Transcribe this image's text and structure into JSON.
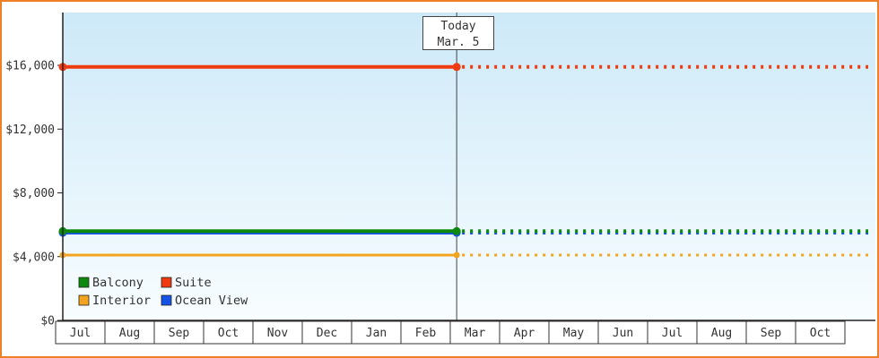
{
  "chart_data": {
    "type": "line",
    "title": "",
    "y_axis": {
      "ticks": [
        {
          "value": 0,
          "label": "$0"
        },
        {
          "value": 4000,
          "label": "$4,000"
        },
        {
          "value": 8000,
          "label": "$8,000"
        },
        {
          "value": 12000,
          "label": "$12,000"
        },
        {
          "value": 16000,
          "label": "$16,000"
        }
      ],
      "range_top_value": 19300
    },
    "x_axis": {
      "months": [
        "Jul",
        "Aug",
        "Sep",
        "Oct",
        "Nov",
        "Dec",
        "Jan",
        "Feb",
        "Mar",
        "Apr",
        "May",
        "Jun",
        "Jul",
        "Aug",
        "Sep",
        "Oct"
      ]
    },
    "today": {
      "label": "Today",
      "date": "Mar. 5",
      "month_index": 8,
      "day_fraction": 0.13
    },
    "series": [
      {
        "name": "Ocean View",
        "color": "#1553e8",
        "value": 5500,
        "stroke_width": 4
      },
      {
        "name": "Balcony",
        "color": "#0d8a0d",
        "value": 5600,
        "stroke_width": 4
      },
      {
        "name": "Interior",
        "color": "#f2a41f",
        "value": 4100,
        "stroke_width": 3
      },
      {
        "name": "Suite",
        "color": "#f03a10",
        "value": 15900,
        "stroke_width": 4
      }
    ],
    "legend": [
      "Balcony",
      "Suite",
      "Interior",
      "Ocean View"
    ],
    "grid": false,
    "legend_position": "bottom-left"
  },
  "colors": {
    "frame_border": "#ef8026",
    "plot_gradient_top": "#cde9f8",
    "plot_gradient_bottom": "#f8fdff",
    "axis": "#222222",
    "text": "#333333",
    "month_box_fill": "#ffffff"
  }
}
